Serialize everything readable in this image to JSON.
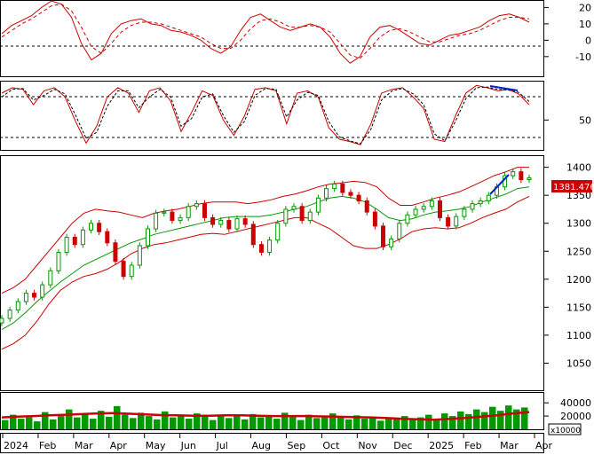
{
  "chart_data": [
    {
      "type": "line",
      "panel": "macd",
      "ylim": [
        -22,
        24
      ],
      "y_ticks": [
        "20",
        "10",
        "0",
        "-10"
      ],
      "reference_line": 0,
      "series": [
        {
          "values": [
            4,
            9,
            12,
            15,
            20,
            24,
            22,
            14,
            -2,
            -12,
            -8,
            4,
            10,
            12,
            13,
            10,
            9,
            6,
            5,
            3,
            0,
            -5,
            -8,
            -4,
            6,
            14,
            16,
            12,
            8,
            6,
            8,
            10,
            8,
            2,
            -8,
            -14,
            -10,
            2,
            8,
            9,
            6,
            2,
            -2,
            -3,
            0,
            3,
            4,
            6,
            8,
            12,
            15,
            16,
            14,
            11
          ]
        },
        {
          "values": [
            2,
            6,
            10,
            13,
            17,
            21,
            22,
            18,
            8,
            -4,
            -8,
            -2,
            5,
            9,
            11,
            11,
            10,
            8,
            6,
            4,
            2,
            -2,
            -5,
            -5,
            0,
            7,
            12,
            13,
            11,
            8,
            8,
            9,
            8,
            5,
            -2,
            -9,
            -11,
            -5,
            2,
            6,
            7,
            5,
            2,
            -1,
            -1,
            1,
            3,
            4,
            6,
            9,
            12,
            14,
            14,
            13
          ]
        }
      ]
    },
    {
      "type": "line",
      "panel": "stochastic",
      "ylim": [
        10,
        100
      ],
      "y_ticks": [
        "50"
      ],
      "reference_lines": [
        80,
        20
      ],
      "series": [
        {
          "values": [
            85,
            92,
            90,
            70,
            88,
            92,
            80,
            48,
            20,
            42,
            80,
            92,
            85,
            60,
            88,
            92,
            75,
            35,
            60,
            88,
            82,
            50,
            30,
            55,
            90,
            92,
            88,
            45,
            85,
            88,
            80,
            40,
            25,
            22,
            18,
            45,
            85,
            90,
            92,
            80,
            65,
            25,
            22,
            55,
            85,
            95,
            92,
            88,
            90,
            84,
            70
          ]
        },
        {
          "values": [
            80,
            90,
            91,
            76,
            82,
            90,
            84,
            56,
            26,
            34,
            68,
            88,
            88,
            66,
            80,
            90,
            80,
            42,
            52,
            80,
            84,
            56,
            34,
            48,
            82,
            91,
            90,
            54,
            76,
            86,
            82,
            48,
            28,
            23,
            19,
            38,
            76,
            88,
            91,
            84,
            70,
            32,
            23,
            48,
            78,
            92,
            93,
            90,
            89,
            86,
            74
          ]
        }
      ]
    },
    {
      "type": "candlestick",
      "panel": "price",
      "ylim": [
        1000,
        1420
      ],
      "y_ticks": [
        "1400",
        "1350",
        "1300",
        "1250",
        "1200",
        "1150",
        "1100",
        "1050"
      ],
      "last_price_label": "1381.476",
      "close": [
        1130,
        1145,
        1160,
        1175,
        1168,
        1190,
        1215,
        1248,
        1275,
        1262,
        1288,
        1300,
        1285,
        1265,
        1232,
        1205,
        1225,
        1260,
        1290,
        1318,
        1320,
        1305,
        1310,
        1330,
        1335,
        1310,
        1298,
        1305,
        1290,
        1308,
        1298,
        1262,
        1248,
        1270,
        1300,
        1325,
        1330,
        1305,
        1320,
        1345,
        1362,
        1370,
        1355,
        1350,
        1340,
        1320,
        1295,
        1258,
        1272,
        1300,
        1315,
        1325,
        1330,
        1340,
        1310,
        1295,
        1312,
        1325,
        1335,
        1340,
        1350,
        1365,
        1385,
        1392,
        1378,
        1381
      ],
      "bands": {
        "upper": [
          1175,
          1185,
          1200,
          1225,
          1250,
          1275,
          1300,
          1318,
          1325,
          1322,
          1320,
          1315,
          1310,
          1318,
          1322,
          1325,
          1330,
          1335,
          1338,
          1338,
          1338,
          1335,
          1338,
          1342,
          1348,
          1352,
          1358,
          1365,
          1370,
          1372,
          1375,
          1373,
          1365,
          1345,
          1332,
          1332,
          1338,
          1345,
          1350,
          1356,
          1365,
          1375,
          1385,
          1392,
          1400,
          1400
        ],
        "middle": [
          1110,
          1122,
          1140,
          1160,
          1178,
          1195,
          1210,
          1225,
          1235,
          1245,
          1255,
          1265,
          1272,
          1280,
          1285,
          1290,
          1295,
          1300,
          1305,
          1310,
          1312,
          1312,
          1312,
          1315,
          1320,
          1325,
          1330,
          1338,
          1345,
          1348,
          1345,
          1338,
          1325,
          1310,
          1305,
          1308,
          1315,
          1320,
          1322,
          1325,
          1330,
          1338,
          1345,
          1352,
          1362,
          1365
        ],
        "lower": [
          1075,
          1085,
          1100,
          1125,
          1155,
          1180,
          1195,
          1205,
          1210,
          1218,
          1230,
          1245,
          1255,
          1262,
          1265,
          1270,
          1275,
          1280,
          1282,
          1280,
          1285,
          1290,
          1295,
          1300,
          1305,
          1310,
          1310,
          1300,
          1290,
          1275,
          1260,
          1255,
          1255,
          1262,
          1272,
          1285,
          1290,
          1292,
          1290,
          1292,
          1300,
          1310,
          1318,
          1325,
          1338,
          1348
        ]
      }
    },
    {
      "type": "bar",
      "panel": "volume",
      "ylim": [
        0,
        55000
      ],
      "y_ticks": [
        "40000",
        "20000"
      ],
      "unit_label": "x10000",
      "values": [
        14000,
        22000,
        16000,
        18000,
        12000,
        26000,
        15000,
        20000,
        30000,
        18000,
        24000,
        16000,
        28000,
        19000,
        35000,
        22000,
        17000,
        25000,
        20000,
        15000,
        27000,
        18000,
        21000,
        16000,
        24000,
        19000,
        14000,
        22000,
        17000,
        20000,
        15000,
        23000,
        18000,
        21000,
        16000,
        25000,
        19000,
        14000,
        22000,
        17000,
        20000,
        24000,
        18000,
        15000,
        21000,
        16000,
        19000,
        13000,
        17000,
        15000,
        20000,
        14000,
        18000,
        22000,
        16000,
        24000,
        20000,
        27000,
        23000,
        30000,
        26000,
        34000,
        28000,
        36000,
        30000,
        33000
      ],
      "moving_average": [
        18000,
        19000,
        20000,
        21000,
        22000,
        23000,
        24000,
        24500,
        23500,
        22500,
        21500,
        21000,
        20500,
        20500,
        21000,
        21000,
        20500,
        20000,
        20000,
        20000,
        19500,
        19000,
        18500,
        18000,
        17000,
        16000,
        15000,
        14500,
        15500,
        17000,
        19000,
        21000,
        24000,
        26000
      ],
      "x_labels": [
        "2024",
        "Feb",
        "Mar",
        "Apr",
        "May",
        "Jun",
        "Jul",
        "Aug",
        "Sep",
        "Oct",
        "Nov",
        "Dec",
        "2025",
        "Feb",
        "Mar",
        "Apr"
      ]
    }
  ]
}
